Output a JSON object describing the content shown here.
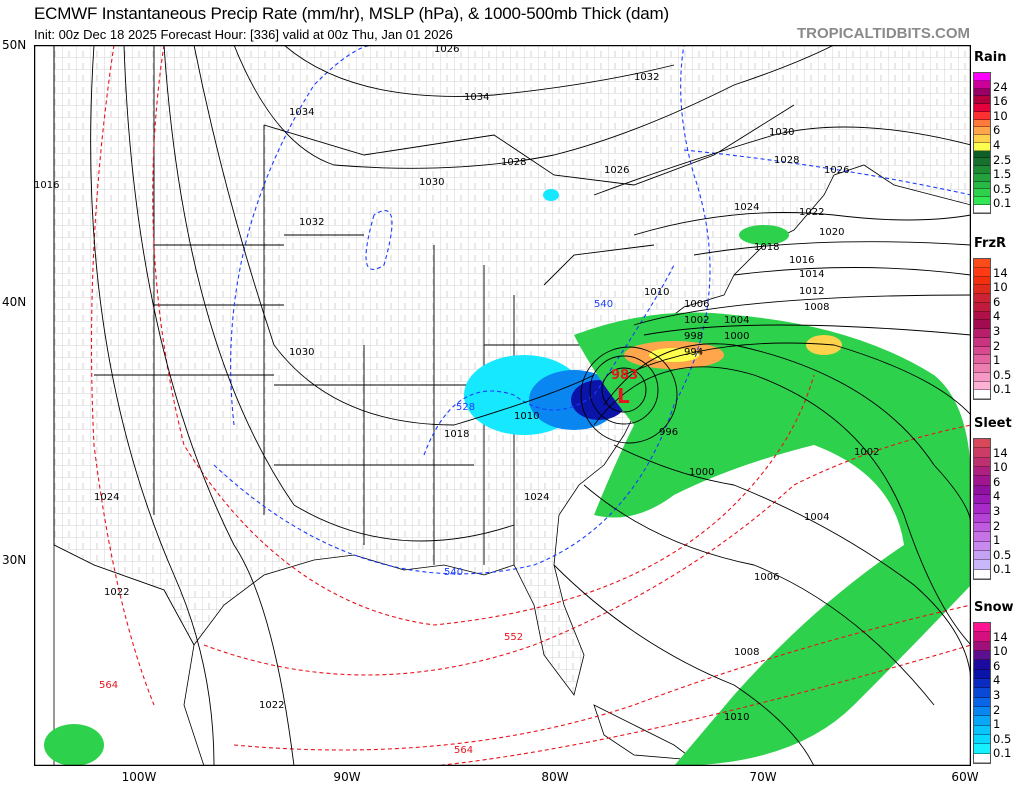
{
  "header": {
    "title": "ECMWF Instantaneous Precip Rate (mm/hr), MSLP (hPa), & 1000-500mb Thick (dam)",
    "subtitle": "Init: 00z Dec 18 2025   Forecast Hour: [336]   valid at 00z Thu, Jan 01 2026",
    "brand": "TROPICALTIDBITS.COM"
  },
  "axes": {
    "lat_labels": [
      "50N",
      "40N",
      "30N"
    ],
    "lon_labels": [
      "100W",
      "90W",
      "80W",
      "70W",
      "60W"
    ]
  },
  "map": {
    "low_center": {
      "pressure": "983",
      "symbol": "L"
    },
    "isobar_labels": [
      "1034",
      "1034",
      "1032",
      "1032",
      "1030",
      "1030",
      "1030",
      "1028",
      "1028",
      "1026",
      "1026",
      "1026",
      "1024",
      "1024",
      "1024",
      "1022",
      "1022",
      "1022",
      "1020",
      "1018",
      "1016",
      "1016",
      "1014",
      "1012",
      "1010",
      "1010",
      "1010",
      "1008",
      "1008",
      "1006",
      "1006",
      "1004",
      "1004",
      "1002",
      "1002",
      "1000",
      "1000",
      "998",
      "996",
      "994",
      "1018"
    ],
    "thickness_labels": [
      "540",
      "528",
      "540",
      "552",
      "564",
      "564"
    ],
    "colors": {
      "isobar": "#000000",
      "thickness_cold": "#1a3cff",
      "thickness_warm": "#e8141e",
      "land": "#ffffff",
      "water": "#ffffff",
      "county": "#9a9a9a"
    }
  },
  "legends": [
    {
      "title": "Rain",
      "labels": [
        "24",
        "16",
        "10",
        "6",
        "4",
        "2.5",
        "1.5",
        "0.5",
        "0.1"
      ],
      "colors": [
        "#ff00ff",
        "#cc0099",
        "#990066",
        "#b3003c",
        "#e6003a",
        "#ff3030",
        "#ff7a3a",
        "#ffa64d",
        "#ffd24d",
        "#ffff4d",
        "#0f5e25",
        "#17702c",
        "#1e8a33",
        "#23a13c",
        "#28b845",
        "#2ed14c",
        "#33e655",
        "#ffffff"
      ]
    },
    {
      "title": "FrzR",
      "labels": [
        "14",
        "10",
        "6",
        "4",
        "3",
        "2",
        "1",
        "0.5",
        "0.1"
      ],
      "colors": [
        "#ff4a1a",
        "#ff3a14",
        "#f23010",
        "#e02a1e",
        "#cc2233",
        "#c01a3c",
        "#b01048",
        "#a30b50",
        "#b81e6a",
        "#c93380",
        "#d84a90",
        "#e2639f",
        "#ec7eb0",
        "#f59ac4",
        "#ffb3d4",
        "#ffffff"
      ]
    },
    {
      "title": "Sleet",
      "labels": [
        "14",
        "10",
        "6",
        "4",
        "3",
        "2",
        "1",
        "0.5",
        "0.1"
      ],
      "colors": [
        "#d9485a",
        "#cc3c66",
        "#bf3070",
        "#b02080",
        "#a0168f",
        "#9010a0",
        "#9a1ab8",
        "#a82ac8",
        "#b541d6",
        "#c05ae0",
        "#c872e8",
        "#c98af0",
        "#c6a2f5",
        "#c8b8fa",
        "#ffffff"
      ]
    },
    {
      "title": "Snow",
      "labels": [
        "14",
        "10",
        "6",
        "4",
        "3",
        "2",
        "1",
        "0.5",
        "0.1"
      ],
      "colors": [
        "#ff1493",
        "#d4107e",
        "#a0107a",
        "#5a1090",
        "#1a0aa0",
        "#0a14a8",
        "#0a2cc0",
        "#0a48d6",
        "#0a66e8",
        "#0a86f0",
        "#0aa6f8",
        "#0ac4fc",
        "#0ad8ff",
        "#16f0ff",
        "#ffffff"
      ]
    }
  ]
}
